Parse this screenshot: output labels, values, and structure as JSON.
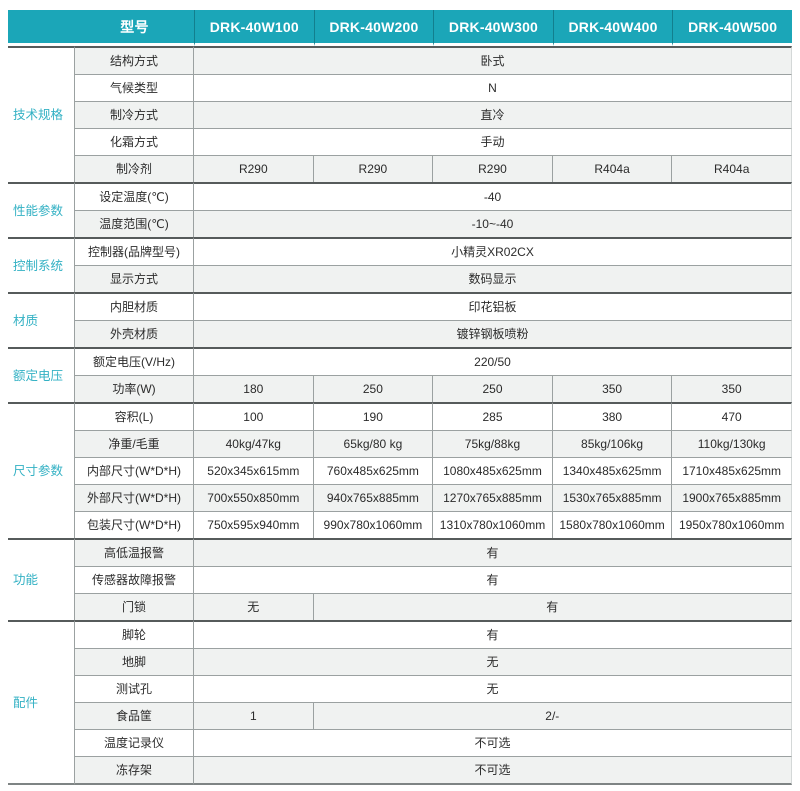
{
  "header": {
    "model_label": "型号",
    "models": [
      "DRK-40W100",
      "DRK-40W200",
      "DRK-40W300",
      "DRK-40W400",
      "DRK-40W500"
    ]
  },
  "sections": [
    {
      "category": "技术规格",
      "rows": [
        {
          "label": "结构方式",
          "values": [
            "卧式"
          ]
        },
        {
          "label": "气候类型",
          "values": [
            "N"
          ]
        },
        {
          "label": "制冷方式",
          "values": [
            "直冷"
          ]
        },
        {
          "label": "化霜方式",
          "values": [
            "手动"
          ]
        },
        {
          "label": "制冷剂",
          "values": [
            "R290",
            "R290",
            "R290",
            "R404a",
            "R404a"
          ]
        }
      ]
    },
    {
      "category": "性能参数",
      "rows": [
        {
          "label": "设定温度(℃)",
          "values": [
            "-40"
          ]
        },
        {
          "label": "温度范围(℃)",
          "values": [
            "-10~-40"
          ]
        }
      ]
    },
    {
      "category": "控制系统",
      "rows": [
        {
          "label": "控制器(品牌型号)",
          "values": [
            "小精灵XR02CX"
          ]
        },
        {
          "label": "显示方式",
          "values": [
            "数码显示"
          ]
        }
      ]
    },
    {
      "category": "材质",
      "rows": [
        {
          "label": "内胆材质",
          "values": [
            "印花铝板"
          ]
        },
        {
          "label": "外壳材质",
          "values": [
            "镀锌钢板喷粉"
          ]
        }
      ]
    },
    {
      "category": "额定电压",
      "rows": [
        {
          "label": "额定电压(V/Hz)",
          "values": [
            "220/50"
          ]
        },
        {
          "label": "功率(W)",
          "values": [
            "180",
            "250",
            "250",
            "350",
            "350"
          ]
        }
      ]
    },
    {
      "category": "尺寸参数",
      "rows": [
        {
          "label": "容积(L)",
          "values": [
            "100",
            "190",
            "285",
            "380",
            "470"
          ]
        },
        {
          "label": "净重/毛重",
          "values": [
            "40kg/47kg",
            "65kg/80 kg",
            "75kg/88kg",
            "85kg/106kg",
            "110kg/130kg"
          ]
        },
        {
          "label": "内部尺寸(W*D*H)",
          "values": [
            "520x345x615mm",
            "760x485x625mm",
            "1080x485x625mm",
            "1340x485x625mm",
            "1710x485x625mm"
          ]
        },
        {
          "label": "外部尺寸(W*D*H)",
          "values": [
            "700x550x850mm",
            "940x765x885mm",
            "1270x765x885mm",
            "1530x765x885mm",
            "1900x765x885mm"
          ]
        },
        {
          "label": "包装尺寸(W*D*H)",
          "values": [
            "750x595x940mm",
            "990x780x1060mm",
            "1310x780x1060mm",
            "1580x780x1060mm",
            "1950x780x1060mm"
          ]
        }
      ]
    },
    {
      "category": "功能",
      "rows": [
        {
          "label": "高低温报警",
          "values": [
            "有"
          ]
        },
        {
          "label": "传感器故障报警",
          "values": [
            "有"
          ]
        },
        {
          "label": "门锁",
          "values": [
            "无",
            "有"
          ],
          "spans": [
            1,
            4
          ]
        }
      ]
    },
    {
      "category": "配件",
      "rows": [
        {
          "label": "脚轮",
          "values": [
            "有"
          ]
        },
        {
          "label": "地脚",
          "values": [
            "无"
          ]
        },
        {
          "label": "测试孔",
          "values": [
            "无"
          ]
        },
        {
          "label": "食品筐",
          "values": [
            "1",
            "2/-"
          ],
          "spans": [
            1,
            4
          ]
        },
        {
          "label": "温度记录仪",
          "values": [
            "不可选"
          ]
        },
        {
          "label": "冻存架",
          "values": [
            "不可选"
          ]
        }
      ]
    }
  ],
  "colors": {
    "header_bg": "#1BA6B8",
    "category_text": "#33B1C4",
    "stripe_row": "#F0F2F1",
    "row_border": "#9BA1A1",
    "section_border": "#565B5B"
  }
}
